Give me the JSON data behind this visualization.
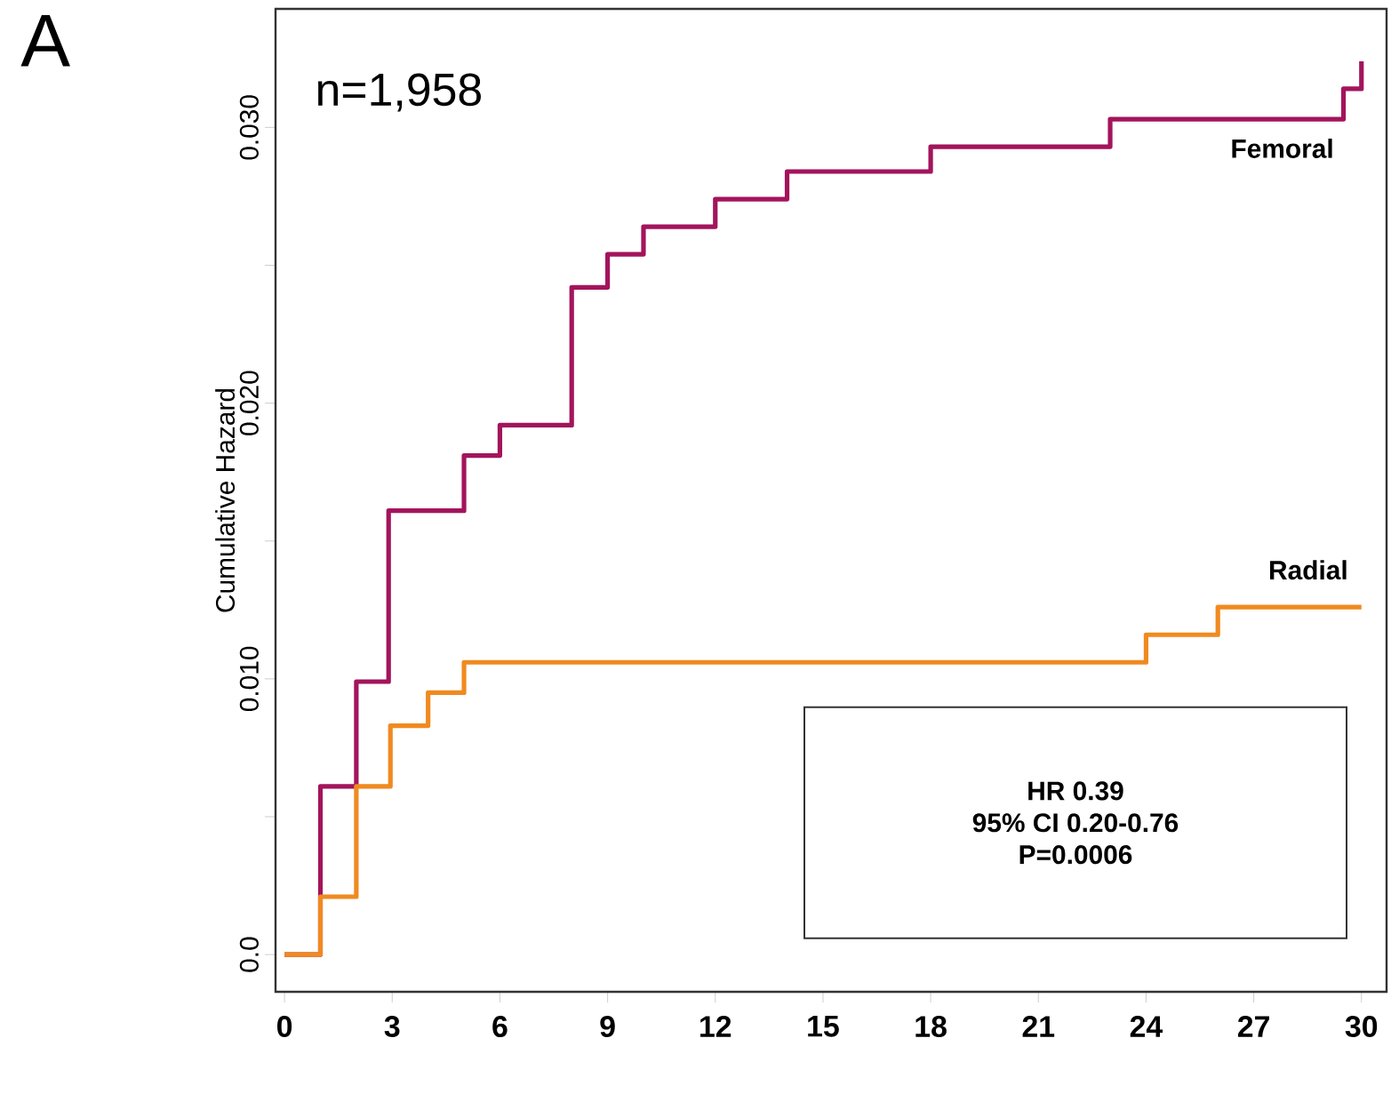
{
  "chart_data": {
    "type": "step",
    "ylabel": "Cumulative Hazard",
    "annotations": [
      "A",
      "n=1,958",
      "HR 0.39",
      "95% CI 0.20-0.76",
      "P=0.0006"
    ],
    "series": [
      {
        "name": "Femoral",
        "color": "#a3145c",
        "x": [
          0,
          1,
          2,
          2.9,
          5,
          6,
          8,
          9,
          10,
          12,
          14,
          18,
          23,
          29.5,
          30
        ],
        "values": [
          0,
          0.0061,
          0.0099,
          0.0161,
          0.0181,
          0.0192,
          0.0242,
          0.0254,
          0.0264,
          0.0274,
          0.0284,
          0.0293,
          0.0303,
          0.0314,
          0.0324
        ]
      },
      {
        "name": "Radial",
        "color": "#f08a20",
        "x": [
          0,
          1,
          2,
          2.95,
          4,
          5,
          24,
          26,
          30
        ],
        "values": [
          0,
          0.0021,
          0.0061,
          0.0083,
          0.0095,
          0.0106,
          0.0116,
          0.0126,
          0.0126
        ]
      }
    ],
    "xlim": [
      -0.25,
      30.7
    ],
    "ylim": [
      -0.00135,
      0.0343
    ],
    "xticks": [
      0,
      3,
      6,
      9,
      12,
      15,
      18,
      21,
      24,
      27,
      30
    ],
    "yticks": [
      {
        "value": 0,
        "label": "0.0"
      },
      {
        "value": 0.005,
        "label": null
      },
      {
        "value": 0.01,
        "label": "0.010"
      },
      {
        "value": 0.015,
        "label": null
      },
      {
        "value": 0.02,
        "label": "0.020"
      },
      {
        "value": 0.025,
        "label": null
      },
      {
        "value": 0.03,
        "label": "0.030"
      }
    ]
  }
}
